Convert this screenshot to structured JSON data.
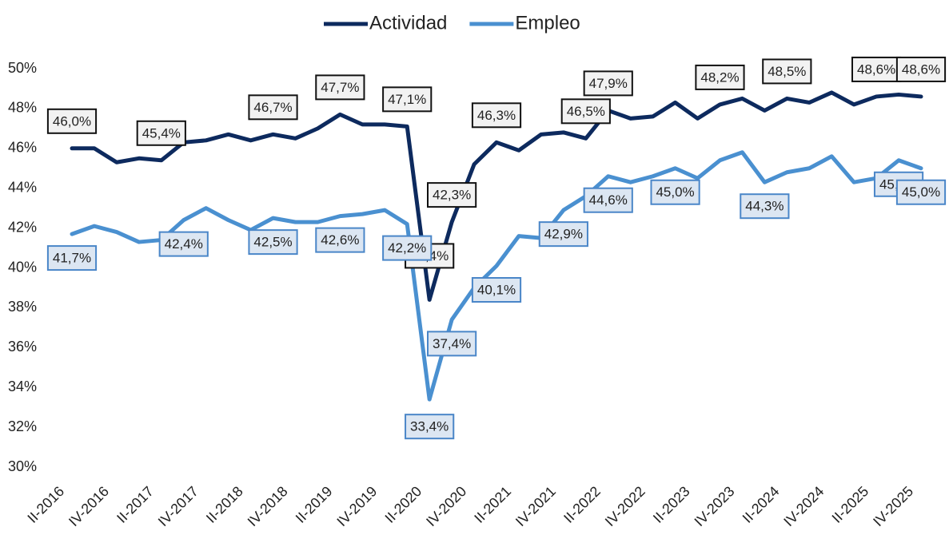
{
  "chart_data": {
    "type": "line",
    "categories": [
      "II-2016",
      null,
      "IV-2016",
      null,
      "II-2017",
      null,
      "IV-2017",
      null,
      "II-2018",
      null,
      "IV-2018",
      null,
      "II-2019",
      null,
      "IV-2019",
      null,
      "II-2020",
      null,
      "IV-2020",
      null,
      "II-2021",
      null,
      "IV-2021",
      null,
      "II-2022",
      null,
      "IV-2022",
      null,
      "II-2023",
      null,
      "IV-2023",
      null,
      "II-2024",
      null,
      "IV-2024",
      null,
      "II-2025",
      null,
      "IV-2025"
    ],
    "series": [
      {
        "name": "Actividad",
        "color": "#0d2a5e",
        "values": [
          46.0,
          46.0,
          45.3,
          45.5,
          45.4,
          46.3,
          46.4,
          46.7,
          46.4,
          46.7,
          46.5,
          47.0,
          47.7,
          47.2,
          47.2,
          47.1,
          38.4,
          42.3,
          45.2,
          46.3,
          45.9,
          46.7,
          46.8,
          46.5,
          47.9,
          47.5,
          47.6,
          48.3,
          47.5,
          48.2,
          48.5,
          47.9,
          48.5,
          48.3,
          48.8,
          48.2,
          48.6,
          48.7,
          48.6
        ],
        "value_labels": [
          "46,0%",
          null,
          null,
          null,
          "45,4%",
          null,
          null,
          null,
          null,
          "46,7%",
          null,
          null,
          "47,7%",
          null,
          null,
          "47,1%",
          "38,4%",
          "42,3%",
          null,
          "46,3%",
          null,
          null,
          null,
          "46,5%",
          "47,9%",
          null,
          null,
          null,
          null,
          "48,2%",
          null,
          null,
          "48,5%",
          null,
          null,
          null,
          "48,6%",
          null,
          "48,6%"
        ]
      },
      {
        "name": "Empleo",
        "color": "#4a90d0",
        "values": [
          41.7,
          42.1,
          41.8,
          41.3,
          41.4,
          42.4,
          43.0,
          42.4,
          41.9,
          42.5,
          42.3,
          42.3,
          42.6,
          42.7,
          42.9,
          42.2,
          33.4,
          37.4,
          39.0,
          40.1,
          41.6,
          41.5,
          42.9,
          43.6,
          44.6,
          44.3,
          44.6,
          45.0,
          44.5,
          45.4,
          45.8,
          44.3,
          44.8,
          45.0,
          45.6,
          44.3,
          44.5,
          45.4,
          45.0
        ],
        "value_labels": [
          "41,7%",
          null,
          null,
          null,
          null,
          "42,4%",
          null,
          null,
          null,
          "42,5%",
          null,
          null,
          "42,6%",
          null,
          null,
          "42,2%",
          "33,4%",
          "37,4%",
          null,
          "40,1%",
          null,
          null,
          "42,9%",
          null,
          "44,6%",
          null,
          null,
          "45,0%",
          null,
          null,
          null,
          "44,3%",
          null,
          null,
          null,
          null,
          null,
          "45,4%",
          "45,0%"
        ]
      }
    ],
    "ylim": [
      30,
      50
    ],
    "yticks": [
      {
        "value": 30,
        "label": "30%"
      },
      {
        "value": 32,
        "label": "32%"
      },
      {
        "value": 34,
        "label": "34%"
      },
      {
        "value": 36,
        "label": "36%"
      },
      {
        "value": 38,
        "label": "38%"
      },
      {
        "value": 40,
        "label": "40%"
      },
      {
        "value": 42,
        "label": "42%"
      },
      {
        "value": 44,
        "label": "44%"
      },
      {
        "value": 46,
        "label": "46%"
      },
      {
        "value": 48,
        "label": "48%"
      },
      {
        "value": 50,
        "label": "50%"
      }
    ],
    "legend": "top"
  }
}
